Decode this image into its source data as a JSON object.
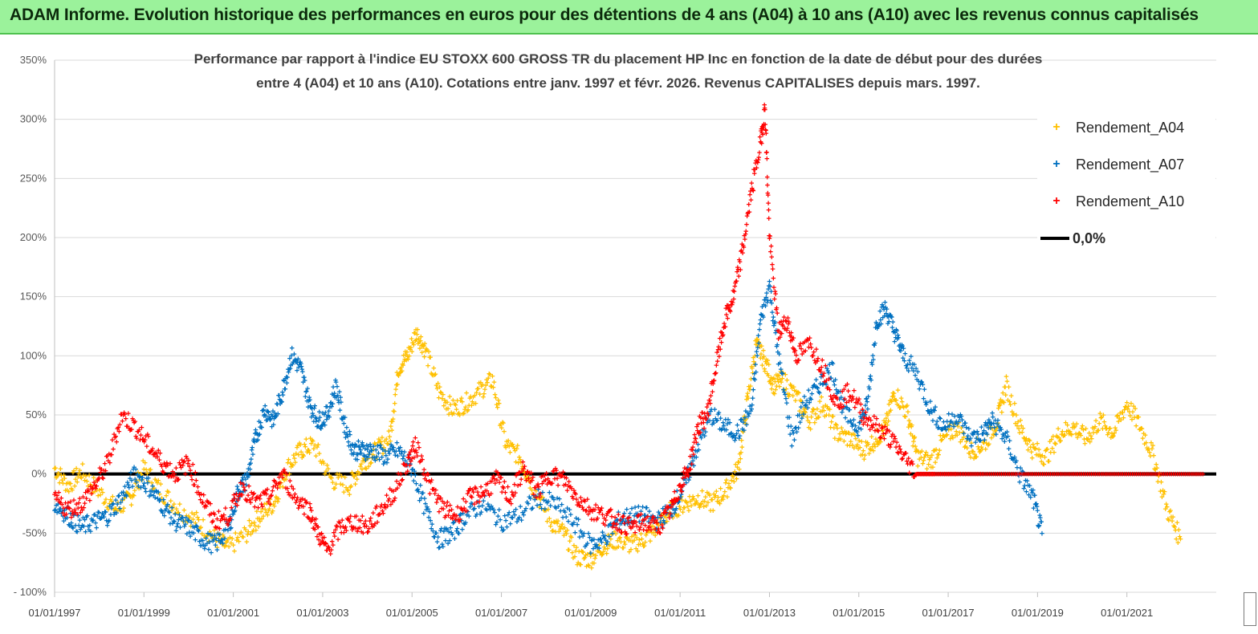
{
  "banner": {
    "title": "ADAM Informe. Evolution historique des performances en euros pour des détentions de 4 ans (A04) à 10 ans (A10) avec les revenus connus capitalisés"
  },
  "chart": {
    "subtitle_line1": "Performance par rapport à l'indice EU STOXX 600 GROSS TR  du placement HP Inc en fonction de la date de début pour des durées",
    "subtitle_line2": "entre 4 (A04) et 10 ans (A10).  Cotations entre janv. 1997 et févr. 2026. Revenus  CAPITALISES depuis mars. 1997."
  },
  "legend": {
    "a04": "Rendement_A04",
    "a07": "Rendement_A07",
    "a10": "Rendement_A10",
    "zero": "0,0%"
  },
  "colors": {
    "a04": "#ffc000",
    "a07": "#0070c0",
    "a10": "#ff0000",
    "zero": "#000000"
  },
  "chart_data": {
    "type": "scatter",
    "title": "Performance par rapport à l'indice EU STOXX 600 GROSS TR du placement HP Inc en fonction de la date de début pour des durées entre 4 (A04) et 10 ans (A10)",
    "xlabel": "",
    "ylabel": "",
    "xlim": [
      1997.0,
      2023.0
    ],
    "ylim": [
      -100,
      350
    ],
    "y_ticks": [
      "- 100%",
      "-50%",
      "0%",
      "50%",
      "100%",
      "150%",
      "200%",
      "250%",
      "300%",
      "350%"
    ],
    "y_tick_values": [
      -100,
      -50,
      0,
      50,
      100,
      150,
      200,
      250,
      300,
      350
    ],
    "x_ticks": [
      "01/01/1997",
      "01/01/1999",
      "01/01/2001",
      "01/01/2003",
      "01/01/2005",
      "01/01/2007",
      "01/01/2009",
      "01/01/2011",
      "01/01/2013",
      "01/01/2015",
      "01/01/2017",
      "01/01/2019",
      "01/01/2021"
    ],
    "x_tick_values": [
      1997,
      1999,
      2001,
      2003,
      2005,
      2007,
      2009,
      2011,
      2013,
      2015,
      2017,
      2019,
      2021
    ],
    "series": [
      {
        "name": "Rendement_A04",
        "color": "#ffc000",
        "x": [
          1997.0,
          1997.3,
          1997.6,
          1998.0,
          1998.4,
          1998.7,
          1999.0,
          1999.4,
          1999.8,
          2000.2,
          2000.6,
          2000.9,
          2001.3,
          2001.6,
          2001.9,
          2002.2,
          2002.5,
          2002.8,
          2003.2,
          2003.6,
          2003.9,
          2004.2,
          2004.5,
          2004.7,
          2004.9,
          2005.1,
          2005.3,
          2005.6,
          2005.9,
          2006.2,
          2006.5,
          2006.8,
          2007.1,
          2007.4,
          2007.7,
          2008.1,
          2008.4,
          2008.7,
          2009.0,
          2009.3,
          2009.6,
          2009.9,
          2010.2,
          2010.5,
          2010.8,
          2011.1,
          2011.4,
          2011.7,
          2012.0,
          2012.3,
          2012.5,
          2012.7,
          2012.9,
          2013.1,
          2013.3,
          2013.6,
          2013.9,
          2014.2,
          2014.5,
          2014.8,
          2015.1,
          2015.4,
          2015.6,
          2015.8,
          2016.1,
          2016.3,
          2016.6,
          2016.9,
          2017.2,
          2017.5,
          2017.8,
          2018.1,
          2018.3,
          2018.6,
          2018.9,
          2019.2,
          2019.5,
          2019.8,
          2020.1,
          2020.4,
          2020.7,
          2021.0,
          2021.3,
          2021.6,
          2021.9,
          2022.2
        ],
        "values": [
          5,
          -10,
          2,
          -15,
          -30,
          -20,
          5,
          -15,
          -30,
          -40,
          -55,
          -62,
          -50,
          -35,
          -25,
          5,
          20,
          25,
          -5,
          -10,
          10,
          20,
          30,
          90,
          100,
          120,
          105,
          70,
          55,
          60,
          70,
          80,
          25,
          15,
          -10,
          -40,
          -50,
          -70,
          -72,
          -60,
          -55,
          -60,
          -55,
          -45,
          -30,
          -25,
          -20,
          -25,
          -15,
          5,
          60,
          110,
          95,
          75,
          80,
          65,
          45,
          60,
          35,
          30,
          20,
          30,
          40,
          70,
          50,
          15,
          10,
          30,
          40,
          20,
          25,
          45,
          75,
          40,
          20,
          15,
          35,
          40,
          30,
          45,
          35,
          60,
          40,
          15,
          -30,
          -55
        ]
      },
      {
        "name": "Rendement_A07",
        "color": "#0070c0",
        "x": [
          1997.0,
          1997.3,
          1997.6,
          1997.9,
          1998.2,
          1998.5,
          1998.8,
          1999.1,
          1999.4,
          1999.7,
          2000.0,
          2000.3,
          2000.6,
          2000.9,
          2001.1,
          2001.3,
          2001.5,
          2001.7,
          2001.9,
          2002.1,
          2002.3,
          2002.5,
          2002.7,
          2002.9,
          2003.1,
          2003.3,
          2003.5,
          2003.7,
          2003.9,
          2004.1,
          2004.4,
          2004.7,
          2005.0,
          2005.3,
          2005.6,
          2005.9,
          2006.2,
          2006.6,
          2007.0,
          2007.4,
          2007.8,
          2008.2,
          2008.6,
          2009.0,
          2009.3,
          2009.6,
          2009.9,
          2010.2,
          2010.5,
          2010.8,
          2011.1,
          2011.4,
          2011.7,
          2012.0,
          2012.3,
          2012.6,
          2012.8,
          2013.0,
          2013.2,
          2013.5,
          2013.8,
          2014.1,
          2014.4,
          2014.7,
          2015.0,
          2015.2,
          2015.4,
          2015.6,
          2015.8,
          2016.0,
          2016.3,
          2016.6,
          2016.9,
          2017.2,
          2017.5,
          2017.8,
          2018.0,
          2018.3,
          2018.6,
          2018.9,
          2019.1
        ],
        "values": [
          -25,
          -35,
          -45,
          -40,
          -35,
          -20,
          0,
          -10,
          -25,
          -40,
          -45,
          -55,
          -60,
          -45,
          -15,
          -5,
          30,
          55,
          45,
          70,
          100,
          90,
          60,
          45,
          50,
          75,
          40,
          20,
          20,
          20,
          15,
          20,
          5,
          -30,
          -55,
          -50,
          -35,
          -25,
          -40,
          -35,
          -20,
          -25,
          -40,
          -60,
          -55,
          -40,
          -35,
          -35,
          -40,
          -30,
          -10,
          25,
          50,
          40,
          35,
          55,
          130,
          160,
          100,
          30,
          60,
          75,
          90,
          50,
          40,
          60,
          130,
          140,
          120,
          100,
          85,
          55,
          40,
          50,
          30,
          35,
          45,
          30,
          0,
          -20,
          -50
        ]
      },
      {
        "name": "Rendement_A10",
        "color": "#ff0000",
        "x": [
          1997.0,
          1997.3,
          1997.6,
          1997.9,
          1998.2,
          1998.5,
          1998.8,
          1999.1,
          1999.4,
          1999.7,
          2000.0,
          2000.3,
          2000.6,
          2000.9,
          2001.2,
          2001.5,
          2001.8,
          2002.1,
          2002.4,
          2002.7,
          2002.9,
          2003.1,
          2003.4,
          2003.7,
          2004.0,
          2004.3,
          2004.6,
          2004.9,
          2005.1,
          2005.4,
          2005.7,
          2006.0,
          2006.3,
          2006.6,
          2006.9,
          2007.2,
          2007.5,
          2007.8,
          2008.1,
          2008.4,
          2008.7,
          2009.0,
          2009.3,
          2009.6,
          2009.9,
          2010.2,
          2010.5,
          2010.8,
          2011.0,
          2011.2,
          2011.4,
          2011.6,
          2011.8,
          2012.0,
          2012.2,
          2012.4,
          2012.6,
          2012.8,
          2012.9,
          2013.0,
          2013.2,
          2013.4,
          2013.6,
          2013.9,
          2014.2,
          2014.5,
          2014.8,
          2015.1,
          2015.4,
          2015.7,
          2016.0,
          2016.3,
          2016.7,
          2017.2,
          2017.8,
          2018.5,
          2019.2,
          2019.9,
          2020.6,
          2021.3,
          2022.0,
          2022.7
        ],
        "values": [
          -20,
          -30,
          -25,
          -10,
          10,
          50,
          40,
          25,
          10,
          0,
          10,
          -20,
          -40,
          -35,
          -10,
          -25,
          -20,
          0,
          -20,
          -30,
          -50,
          -65,
          -45,
          -40,
          -45,
          -30,
          -15,
          10,
          25,
          -10,
          -30,
          -35,
          -20,
          -15,
          -5,
          -20,
          5,
          -15,
          0,
          -5,
          -20,
          -30,
          -35,
          -40,
          -45,
          -40,
          -45,
          -30,
          -10,
          5,
          40,
          50,
          90,
          130,
          150,
          190,
          240,
          280,
          310,
          200,
          120,
          130,
          100,
          110,
          90,
          60,
          70,
          50,
          40,
          30,
          15,
          0,
          0,
          0,
          0,
          0,
          0,
          0,
          0,
          0,
          0,
          0
        ]
      },
      {
        "name": "0,0%",
        "color": "#000000",
        "type": "line",
        "x": [
          1997.0,
          2023.0
        ],
        "values": [
          0,
          0
        ]
      }
    ]
  }
}
